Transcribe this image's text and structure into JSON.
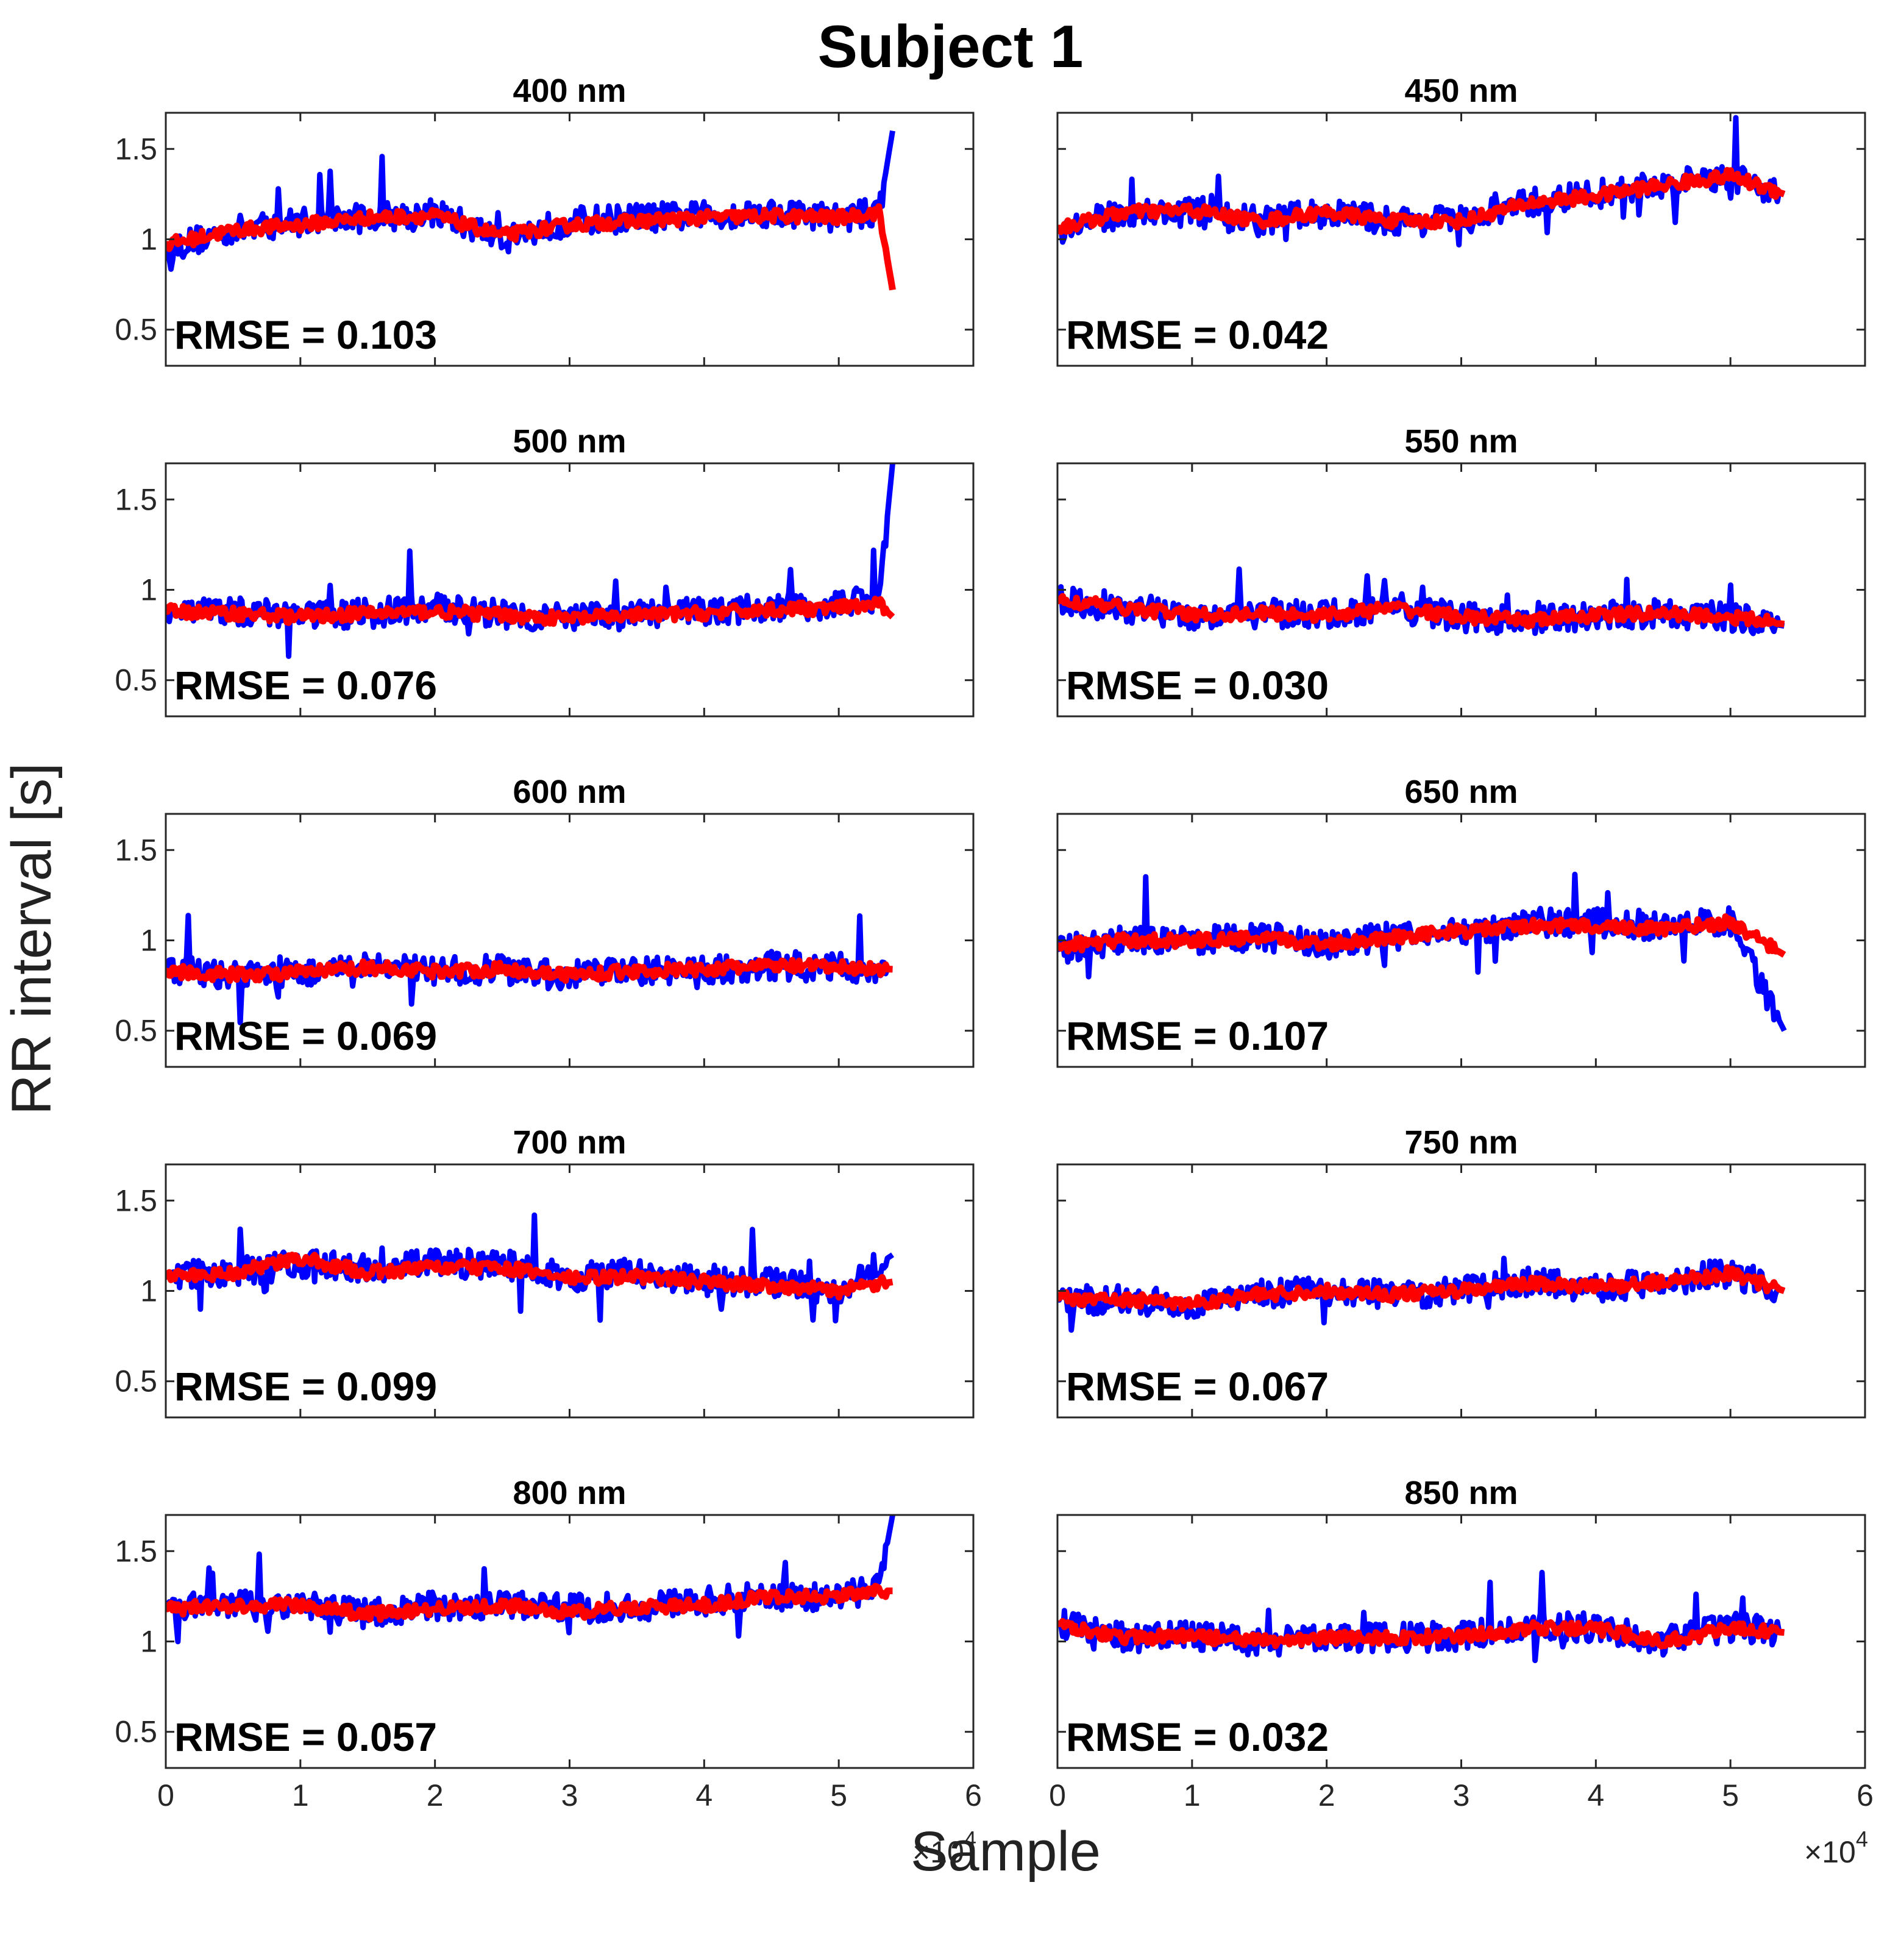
{
  "figure_title": "Subject 1",
  "ylabel": "RR interval [s]",
  "xlabel": "Sample",
  "x_exponent_label": "×10",
  "x_exponent_power": "4",
  "colors": {
    "measured": "#0000ff",
    "estimated": "#ff0000",
    "axes": "#262626",
    "text": "#000000"
  },
  "chart_data": [
    {
      "type": "line",
      "title": "400  nm",
      "rmse_label": "RMSE = 0.103",
      "xlim": [
        0,
        6
      ],
      "ylim": [
        0.3,
        1.7
      ],
      "yticks": [
        0.5,
        1,
        1.5
      ],
      "ytick_labels": [
        "0.5",
        "1",
        "1.5"
      ],
      "xticks": [
        0,
        1,
        2,
        3,
        4,
        5,
        6
      ],
      "xtick_labels": [],
      "series": [
        {
          "name": "measured",
          "x": [
            0,
            0.5,
            1,
            1.5,
            2,
            2.5,
            3,
            3.5,
            4,
            4.5,
            5,
            5.3,
            5.4
          ],
          "values": [
            0.95,
            1.05,
            1.1,
            1.12,
            1.15,
            1.0,
            1.1,
            1.12,
            1.13,
            1.15,
            1.12,
            1.15,
            1.6
          ]
        },
        {
          "name": "estimated",
          "x": [
            0,
            0.5,
            1,
            1.5,
            2,
            2.5,
            3,
            3.5,
            4,
            4.5,
            5,
            5.3,
            5.4
          ],
          "values": [
            0.97,
            1.05,
            1.08,
            1.12,
            1.13,
            1.02,
            1.08,
            1.1,
            1.12,
            1.13,
            1.12,
            1.15,
            0.72
          ]
        }
      ]
    },
    {
      "type": "line",
      "title": "450  nm",
      "rmse_label": "RMSE = 0.042",
      "xlim": [
        0,
        6
      ],
      "ylim": [
        0.3,
        1.7
      ],
      "yticks": [
        0.5,
        1,
        1.5
      ],
      "ytick_labels": [],
      "xticks": [
        0,
        1,
        2,
        3,
        4,
        5,
        6
      ],
      "xtick_labels": [],
      "series": [
        {
          "name": "measured",
          "x": [
            0,
            0.5,
            1,
            1.5,
            2,
            2.5,
            3,
            3.5,
            4,
            4.5,
            5,
            5.4
          ],
          "values": [
            1.05,
            1.15,
            1.15,
            1.1,
            1.15,
            1.1,
            1.1,
            1.2,
            1.25,
            1.3,
            1.35,
            1.25
          ]
        },
        {
          "name": "estimated",
          "x": [
            0,
            0.5,
            1,
            1.5,
            2,
            2.5,
            3,
            3.5,
            4,
            4.5,
            5,
            5.4
          ],
          "values": [
            1.06,
            1.15,
            1.16,
            1.1,
            1.15,
            1.1,
            1.1,
            1.2,
            1.24,
            1.3,
            1.35,
            1.25
          ]
        }
      ]
    },
    {
      "type": "line",
      "title": "500  nm",
      "rmse_label": "RMSE = 0.076",
      "xlim": [
        0,
        6
      ],
      "ylim": [
        0.3,
        1.7
      ],
      "yticks": [
        0.5,
        1,
        1.5
      ],
      "ytick_labels": [
        "0.5",
        "1",
        "1.5"
      ],
      "xticks": [
        0,
        1,
        2,
        3,
        4,
        5,
        6
      ],
      "xtick_labels": [],
      "series": [
        {
          "name": "measured",
          "x": [
            0,
            0.5,
            1,
            1.5,
            2,
            2.5,
            3,
            3.5,
            4,
            4.5,
            5,
            5.3,
            5.4
          ],
          "values": [
            0.9,
            0.88,
            0.86,
            0.87,
            0.9,
            0.87,
            0.84,
            0.86,
            0.88,
            0.9,
            0.92,
            0.95,
            1.7
          ]
        },
        {
          "name": "estimated",
          "x": [
            0,
            0.5,
            1,
            1.5,
            2,
            2.5,
            3,
            3.5,
            4,
            4.5,
            5,
            5.3,
            5.4
          ],
          "values": [
            0.88,
            0.87,
            0.85,
            0.87,
            0.88,
            0.86,
            0.84,
            0.86,
            0.87,
            0.89,
            0.9,
            0.92,
            0.85
          ]
        }
      ]
    },
    {
      "type": "line",
      "title": "550  nm",
      "rmse_label": "RMSE = 0.030",
      "xlim": [
        0,
        6
      ],
      "ylim": [
        0.3,
        1.7
      ],
      "yticks": [
        0.5,
        1,
        1.5
      ],
      "ytick_labels": [],
      "xticks": [
        0,
        1,
        2,
        3,
        4,
        5,
        6
      ],
      "xtick_labels": [],
      "series": [
        {
          "name": "measured",
          "x": [
            0,
            0.5,
            1,
            1.5,
            2,
            2.5,
            3,
            3.5,
            4,
            4.5,
            5,
            5.4
          ],
          "values": [
            0.95,
            0.9,
            0.86,
            0.87,
            0.86,
            0.9,
            0.85,
            0.83,
            0.86,
            0.87,
            0.85,
            0.8
          ]
        },
        {
          "name": "estimated",
          "x": [
            0,
            0.5,
            1,
            1.5,
            2,
            2.5,
            3,
            3.5,
            4,
            4.5,
            5,
            5.4
          ],
          "values": [
            0.94,
            0.9,
            0.86,
            0.87,
            0.86,
            0.9,
            0.85,
            0.83,
            0.86,
            0.87,
            0.85,
            0.81
          ]
        }
      ]
    },
    {
      "type": "line",
      "title": "600  nm",
      "rmse_label": "RMSE = 0.069",
      "xlim": [
        0,
        6
      ],
      "ylim": [
        0.3,
        1.7
      ],
      "yticks": [
        0.5,
        1,
        1.5
      ],
      "ytick_labels": [
        "0.5",
        "1",
        "1.5"
      ],
      "xticks": [
        0,
        1,
        2,
        3,
        4,
        5,
        6
      ],
      "xtick_labels": [],
      "series": [
        {
          "name": "measured",
          "x": [
            0,
            0.5,
            1,
            1.5,
            2,
            2.5,
            3,
            3.5,
            4,
            4.5,
            5,
            5.4
          ],
          "values": [
            0.85,
            0.8,
            0.82,
            0.85,
            0.83,
            0.84,
            0.8,
            0.83,
            0.84,
            0.86,
            0.85,
            0.84
          ]
        },
        {
          "name": "estimated",
          "x": [
            0,
            0.5,
            1,
            1.5,
            2,
            2.5,
            3,
            3.5,
            4,
            4.5,
            5,
            5.4
          ],
          "values": [
            0.83,
            0.81,
            0.82,
            0.85,
            0.83,
            0.84,
            0.81,
            0.83,
            0.84,
            0.86,
            0.85,
            0.84
          ]
        }
      ]
    },
    {
      "type": "line",
      "title": "650  nm",
      "rmse_label": "RMSE = 0.107",
      "xlim": [
        0,
        6
      ],
      "ylim": [
        0.3,
        1.7
      ],
      "yticks": [
        0.5,
        1,
        1.5
      ],
      "ytick_labels": [],
      "xticks": [
        0,
        1,
        2,
        3,
        4,
        5,
        6
      ],
      "xtick_labels": [],
      "series": [
        {
          "name": "measured",
          "x": [
            0,
            0.5,
            1,
            1.5,
            2,
            2.5,
            3,
            3.5,
            4,
            4.5,
            5,
            5.4
          ],
          "values": [
            0.95,
            1.0,
            1.0,
            1.02,
            0.98,
            1.02,
            1.05,
            1.1,
            1.1,
            1.08,
            1.1,
            0.5
          ]
        },
        {
          "name": "estimated",
          "x": [
            0,
            0.5,
            1,
            1.5,
            2,
            2.5,
            3,
            3.5,
            4,
            4.5,
            5,
            5.4
          ],
          "values": [
            0.97,
            1.0,
            1.0,
            1.01,
            0.98,
            1.02,
            1.05,
            1.08,
            1.08,
            1.06,
            1.1,
            0.92
          ]
        }
      ]
    },
    {
      "type": "line",
      "title": "700  nm",
      "rmse_label": "RMSE = 0.099",
      "xlim": [
        0,
        6
      ],
      "ylim": [
        0.3,
        1.7
      ],
      "yticks": [
        0.5,
        1,
        1.5
      ],
      "ytick_labels": [
        "0.5",
        "1",
        "1.5"
      ],
      "xticks": [
        0,
        1,
        2,
        3,
        4,
        5,
        6
      ],
      "xtick_labels": [],
      "series": [
        {
          "name": "measured",
          "x": [
            0,
            0.5,
            1,
            1.5,
            2,
            2.5,
            3,
            3.5,
            4,
            4.5,
            5,
            5.4
          ],
          "values": [
            1.08,
            1.1,
            1.15,
            1.12,
            1.15,
            1.15,
            1.08,
            1.1,
            1.05,
            1.05,
            1.0,
            1.2
          ]
        },
        {
          "name": "estimated",
          "x": [
            0,
            0.5,
            1,
            1.5,
            2,
            2.5,
            3,
            3.5,
            4,
            4.5,
            5,
            5.4
          ],
          "values": [
            1.08,
            1.1,
            1.18,
            1.1,
            1.13,
            1.13,
            1.07,
            1.08,
            1.05,
            1.03,
            1.0,
            1.05
          ]
        }
      ]
    },
    {
      "type": "line",
      "title": "750  nm",
      "rmse_label": "RMSE = 0.067",
      "xlim": [
        0,
        6
      ],
      "ylim": [
        0.3,
        1.7
      ],
      "yticks": [
        0.5,
        1,
        1.5
      ],
      "ytick_labels": [],
      "xticks": [
        0,
        1,
        2,
        3,
        4,
        5,
        6
      ],
      "xtick_labels": [],
      "series": [
        {
          "name": "measured",
          "x": [
            0,
            0.5,
            1,
            1.5,
            2,
            2.5,
            3,
            3.5,
            4,
            4.5,
            5,
            5.4
          ],
          "values": [
            0.95,
            0.95,
            0.92,
            0.98,
            1.0,
            0.98,
            1.0,
            1.05,
            1.02,
            1.05,
            1.1,
            1.0
          ]
        },
        {
          "name": "estimated",
          "x": [
            0,
            0.5,
            1,
            1.5,
            2,
            2.5,
            3,
            3.5,
            4,
            4.5,
            5,
            5.4
          ],
          "values": [
            0.96,
            0.95,
            0.93,
            0.98,
            1.0,
            0.98,
            1.0,
            1.04,
            1.02,
            1.05,
            1.1,
            1.0
          ]
        }
      ]
    },
    {
      "type": "line",
      "title": "800  nm",
      "rmse_label": "RMSE = 0.057",
      "xlim": [
        0,
        6
      ],
      "ylim": [
        0.3,
        1.7
      ],
      "yticks": [
        0.5,
        1,
        1.5
      ],
      "ytick_labels": [
        "0.5",
        "1",
        "1.5"
      ],
      "xticks": [
        0,
        1,
        2,
        3,
        4,
        5,
        6
      ],
      "xtick_labels": [
        "0",
        "1",
        "2",
        "3",
        "4",
        "5",
        "6"
      ],
      "series": [
        {
          "name": "measured",
          "x": [
            0,
            0.5,
            1,
            1.5,
            2,
            2.5,
            3,
            3.5,
            4,
            4.5,
            5,
            5.3,
            5.4
          ],
          "values": [
            1.18,
            1.2,
            1.2,
            1.15,
            1.2,
            1.2,
            1.18,
            1.2,
            1.22,
            1.25,
            1.25,
            1.3,
            1.7
          ]
        },
        {
          "name": "estimated",
          "x": [
            0,
            0.5,
            1,
            1.5,
            2,
            2.5,
            3,
            3.5,
            4,
            4.5,
            5,
            5.3,
            5.4
          ],
          "values": [
            1.18,
            1.2,
            1.2,
            1.15,
            1.18,
            1.2,
            1.16,
            1.19,
            1.2,
            1.25,
            1.25,
            1.28,
            1.28
          ]
        }
      ]
    },
    {
      "type": "line",
      "title": "850  nm",
      "rmse_label": "RMSE = 0.032",
      "xlim": [
        0,
        6
      ],
      "ylim": [
        0.3,
        1.7
      ],
      "yticks": [
        0.5,
        1,
        1.5
      ],
      "ytick_labels": [],
      "xticks": [
        0,
        1,
        2,
        3,
        4,
        5,
        6
      ],
      "xtick_labels": [
        "0",
        "1",
        "2",
        "3",
        "4",
        "5",
        "6"
      ],
      "series": [
        {
          "name": "measured",
          "x": [
            0,
            0.5,
            1,
            1.5,
            2,
            2.5,
            3,
            3.5,
            4,
            4.5,
            5,
            5.4
          ],
          "values": [
            1.1,
            1.02,
            1.03,
            1.0,
            1.02,
            1.02,
            1.03,
            1.08,
            1.08,
            1.0,
            1.08,
            1.05
          ]
        },
        {
          "name": "estimated",
          "x": [
            0,
            0.5,
            1,
            1.5,
            2,
            2.5,
            3,
            3.5,
            4,
            4.5,
            5,
            5.4
          ],
          "values": [
            1.1,
            1.02,
            1.03,
            1.0,
            1.02,
            1.02,
            1.03,
            1.07,
            1.07,
            1.0,
            1.07,
            1.05
          ]
        }
      ]
    }
  ]
}
